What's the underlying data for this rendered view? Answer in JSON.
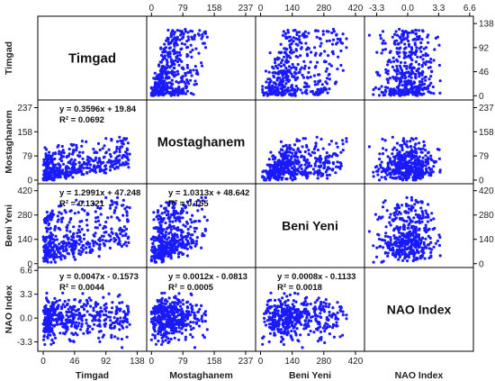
{
  "chart_data": {
    "type": "scatter",
    "variables": [
      {
        "name": "Timgad",
        "ticks": [
          "0",
          "46",
          "92",
          "138"
        ],
        "range": [
          -8,
          152
        ]
      },
      {
        "name": "Mostaghanem",
        "ticks": [
          "0",
          "79",
          "158",
          "237"
        ],
        "range": [
          -12,
          262
        ]
      },
      {
        "name": "Beni Yeni",
        "ticks": [
          "0",
          "140",
          "280",
          "420"
        ],
        "range": [
          -22,
          460
        ]
      },
      {
        "name": "NAO Index",
        "ticks": [
          "-3.3",
          "0.0",
          "3.3",
          "6.6"
        ],
        "range": [
          -4.6,
          7.0
        ]
      }
    ],
    "bottom_labels": [
      "Timgad",
      "Mostaghanem",
      "Beni Yeni",
      "NAO Index"
    ],
    "left_labels": [
      "Timgad",
      "Mostaghanem",
      "Beni Yeni",
      "NAO Index"
    ],
    "regressions": [
      {
        "row": 1,
        "col": 0,
        "equation": "y = 0.3596x + 19.84",
        "r2": "R² = 0.0692",
        "slope": 0.3596,
        "intercept": 19.84
      },
      {
        "row": 2,
        "col": 0,
        "equation": "y = 1.2991x + 47.248",
        "r2": "R² = 0.1321",
        "slope": 1.2991,
        "intercept": 47.248
      },
      {
        "row": 2,
        "col": 1,
        "equation": "y = 1.0313x + 48.642",
        "r2": "R² = 0.155",
        "slope": 1.0313,
        "intercept": 48.642
      },
      {
        "row": 3,
        "col": 0,
        "equation": "y = 0.0047x - 0.1573",
        "r2": "R² = 0.0044",
        "slope": 0.0047,
        "intercept": -0.1573
      },
      {
        "row": 3,
        "col": 1,
        "equation": "y = 0.0012x - 0.0813",
        "r2": "R² = 0.0005",
        "slope": 0.0012,
        "intercept": -0.0813
      },
      {
        "row": 3,
        "col": 2,
        "equation": "y = 0.0008x - 0.1133",
        "r2": "R² = 0.0018",
        "slope": 0.0008,
        "intercept": -0.1133
      }
    ],
    "point_color": "#1a1aff",
    "n_points": 420
  }
}
